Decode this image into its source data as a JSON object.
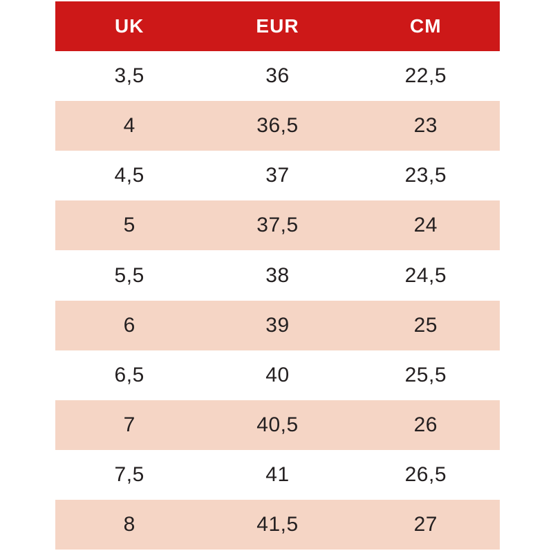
{
  "table": {
    "name": "shoe-size-conversion-chart",
    "columns": [
      {
        "label": "UK"
      },
      {
        "label": "EUR"
      },
      {
        "label": "CM"
      }
    ],
    "rows": [
      {
        "uk": "3,5",
        "eur": "36",
        "cm": "22,5"
      },
      {
        "uk": "4",
        "eur": "36,5",
        "cm": "23"
      },
      {
        "uk": "4,5",
        "eur": "37",
        "cm": "23,5"
      },
      {
        "uk": "5",
        "eur": "37,5",
        "cm": "24"
      },
      {
        "uk": "5,5",
        "eur": "38",
        "cm": "24,5"
      },
      {
        "uk": "6",
        "eur": "39",
        "cm": "25"
      },
      {
        "uk": "6,5",
        "eur": "40",
        "cm": "25,5"
      },
      {
        "uk": "7",
        "eur": "40,5",
        "cm": "26"
      },
      {
        "uk": "7,5",
        "eur": "41",
        "cm": "26,5"
      },
      {
        "uk": "8",
        "eur": "41,5",
        "cm": "27"
      }
    ]
  },
  "colors": {
    "header_bg": "#cd1818",
    "header_text": "#ffffff",
    "row_alt_bg": "#f5d5c5",
    "row_bg": "#ffffff",
    "cell_text": "#231f20"
  }
}
